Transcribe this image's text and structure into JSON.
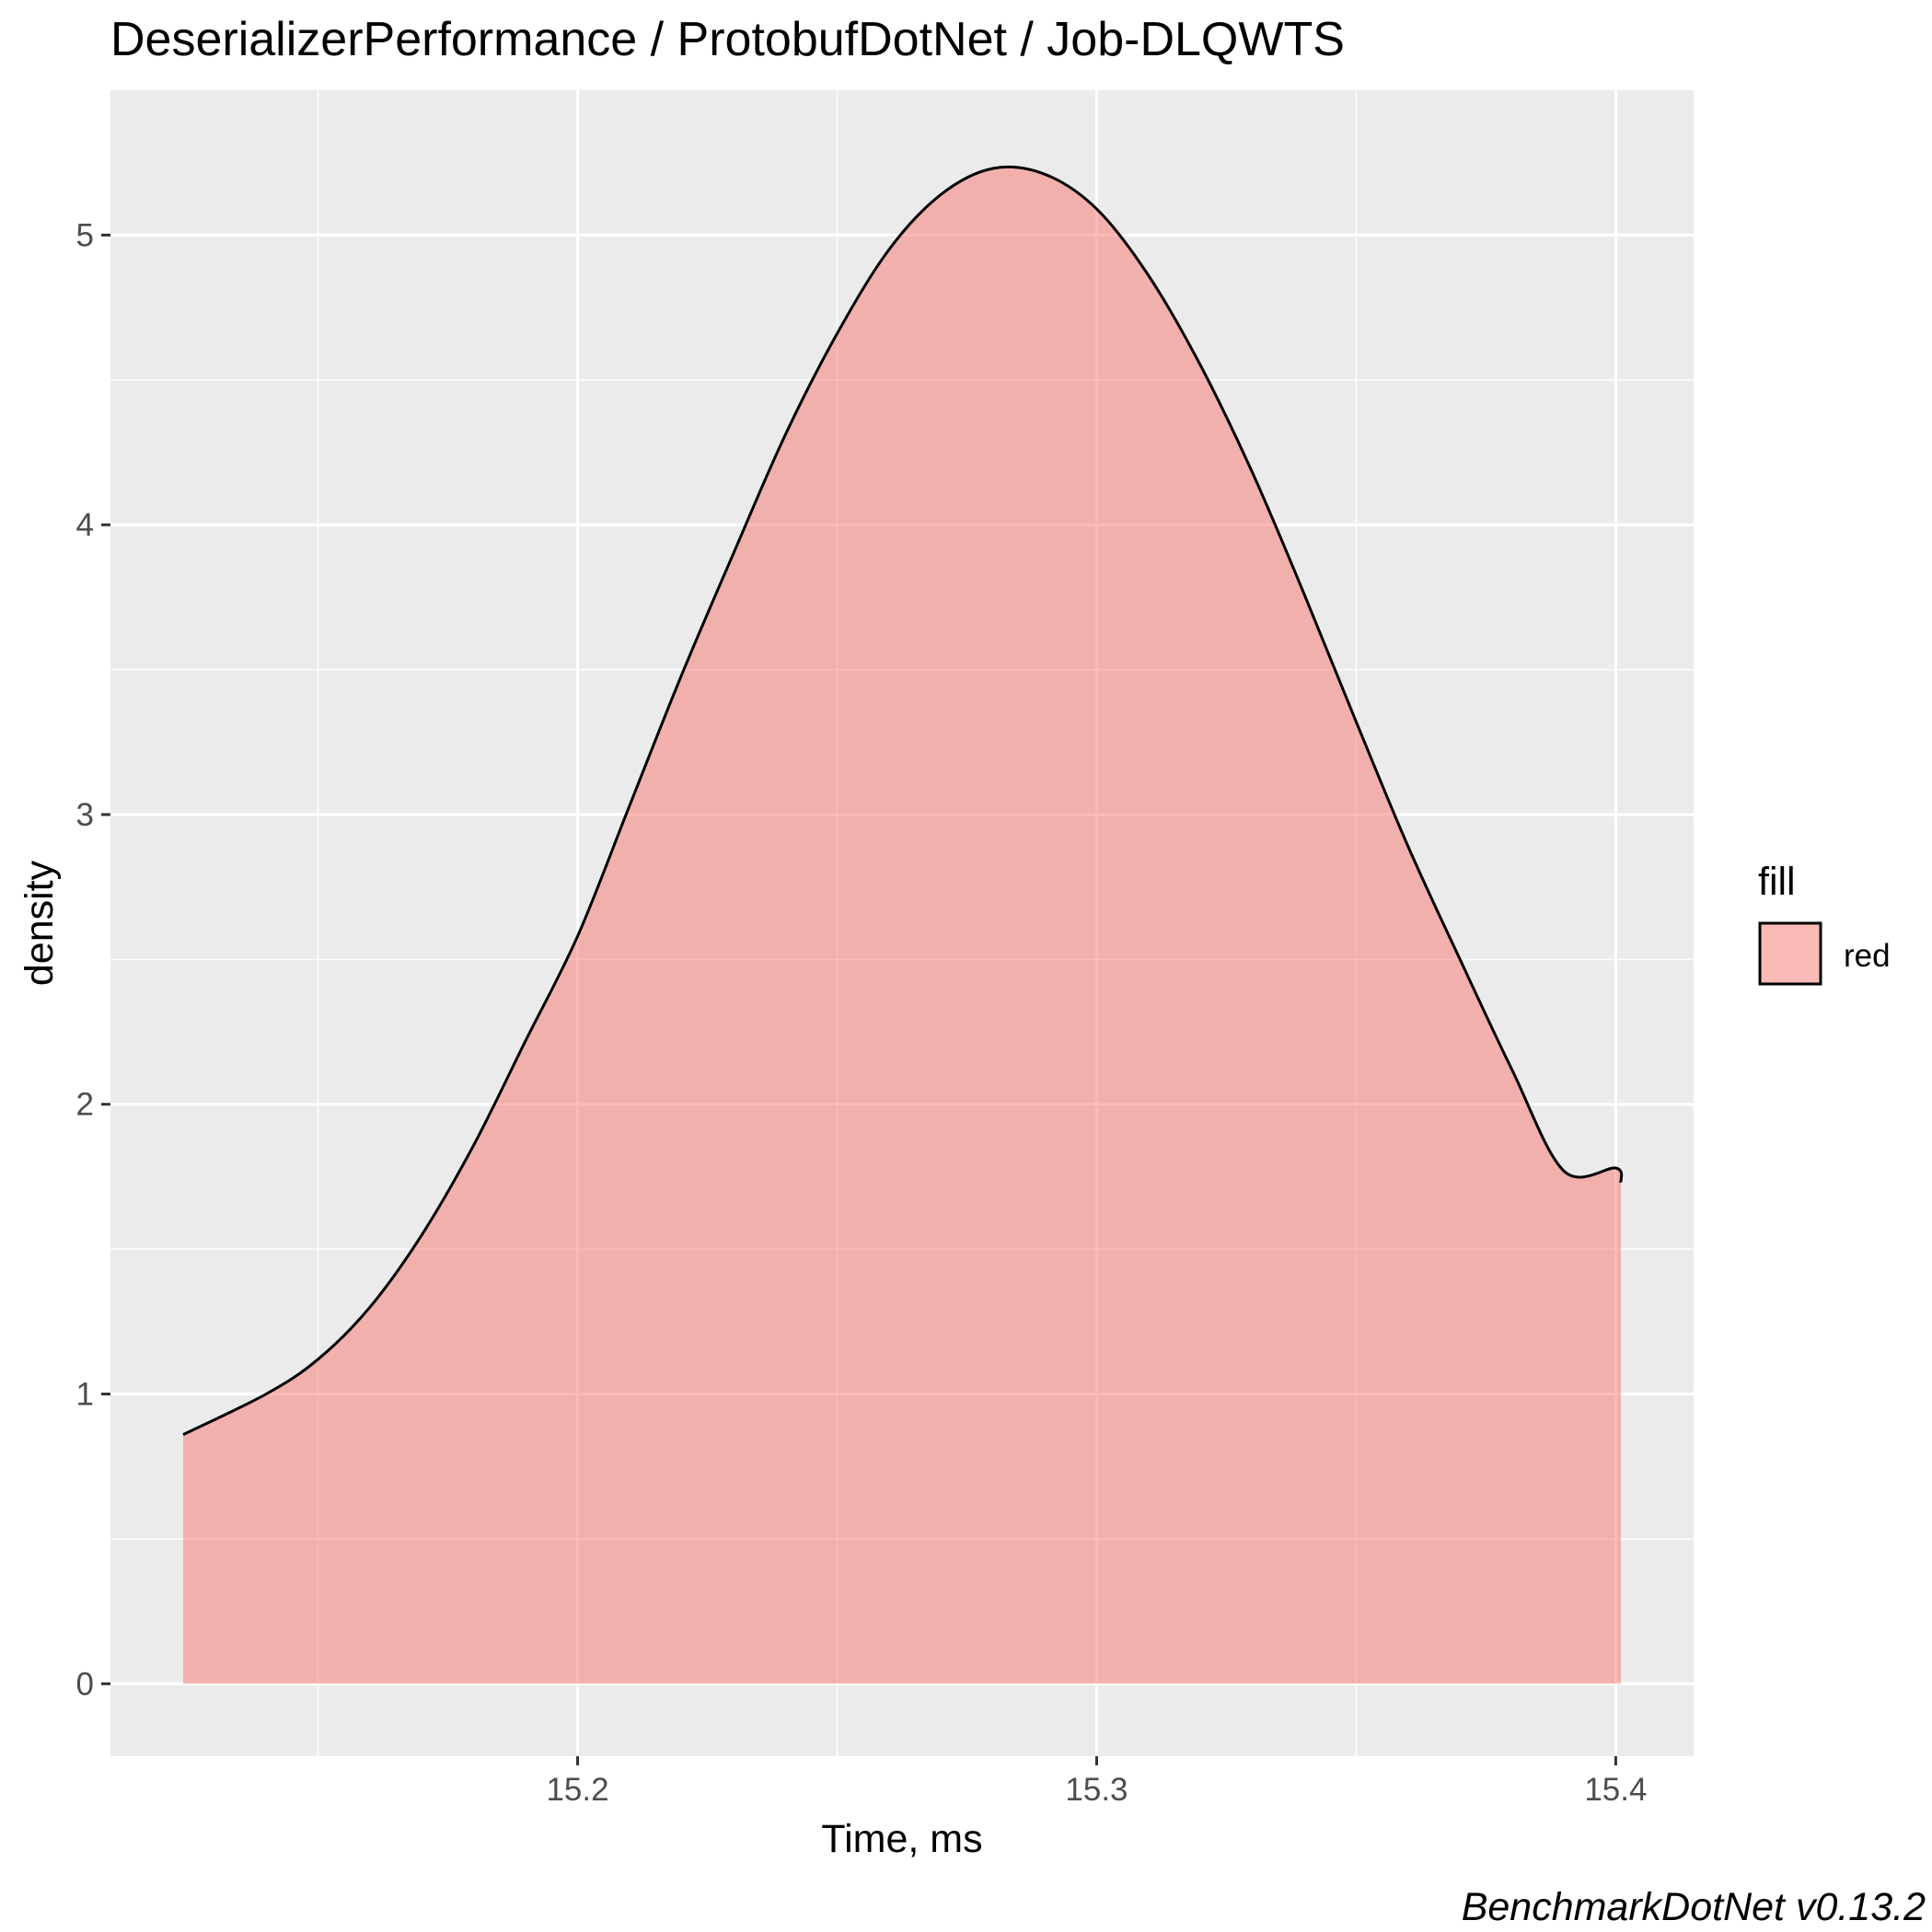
{
  "chart_data": {
    "type": "area",
    "title": "DeserializerPerformance / ProtobufDotNet / Job-DLQWTS",
    "xlabel": "Time, ms",
    "ylabel": "density",
    "caption": "BenchmarkDotNet v0.13.2",
    "xlim": [
      15.11,
      15.415
    ],
    "ylim": [
      -0.25,
      5.5
    ],
    "x_ticks": [
      15.2,
      15.3,
      15.4
    ],
    "x_tick_labels": [
      "15.2",
      "15.3",
      "15.4"
    ],
    "y_ticks": [
      0,
      1,
      2,
      3,
      4,
      5
    ],
    "y_tick_labels": [
      "0",
      "1",
      "2",
      "3",
      "4",
      "5"
    ],
    "grid": true,
    "legend": {
      "title": "fill",
      "position": "right",
      "entries": [
        {
          "label": "red",
          "color": "#F8766D"
        }
      ]
    },
    "series": [
      {
        "name": "red",
        "fill_color": "#F8766D",
        "fill_opacity": 0.5,
        "line_color": "#000000",
        "x": [
          15.124,
          15.14,
          15.15,
          15.16,
          15.17,
          15.18,
          15.19,
          15.2,
          15.21,
          15.22,
          15.23,
          15.24,
          15.25,
          15.26,
          15.27,
          15.28,
          15.29,
          15.3,
          15.31,
          15.32,
          15.33,
          15.34,
          15.35,
          15.36,
          15.37,
          15.38,
          15.39,
          15.4,
          15.401
        ],
        "y": [
          0.86,
          1.0,
          1.12,
          1.3,
          1.55,
          1.86,
          2.22,
          2.58,
          3.03,
          3.48,
          3.9,
          4.31,
          4.66,
          4.95,
          5.14,
          5.23,
          5.21,
          5.09,
          4.86,
          4.55,
          4.18,
          3.76,
          3.32,
          2.89,
          2.5,
          2.12,
          1.77,
          1.78,
          1.73
        ]
      }
    ]
  }
}
